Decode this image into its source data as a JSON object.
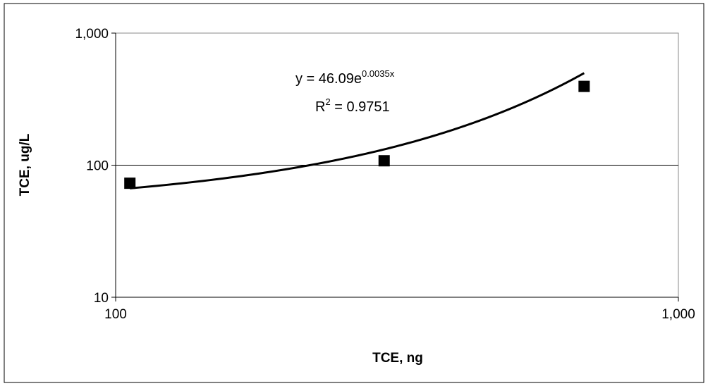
{
  "chart_data": {
    "type": "scatter",
    "xlabel": "TCE, ng",
    "ylabel": "TCE, ug/L",
    "x_scale": "log",
    "y_scale": "log",
    "xlim": [
      100,
      1000
    ],
    "ylim": [
      10,
      1000
    ],
    "x_ticks": [
      {
        "value": 100,
        "label": "100"
      },
      {
        "value": 1000,
        "label": "1,000"
      }
    ],
    "y_ticks": [
      {
        "value": 10,
        "label": "10"
      },
      {
        "value": 100,
        "label": "100"
      },
      {
        "value": 1000,
        "label": "1,000"
      }
    ],
    "grid": {
      "y_major": true,
      "x_major": false
    },
    "legend": "none",
    "series": [
      {
        "points": [
          {
            "x": 106,
            "y": 73
          },
          {
            "x": 300,
            "y": 108
          },
          {
            "x": 680,
            "y": 395
          }
        ],
        "marker": "square",
        "color": "#000000"
      }
    ],
    "trendline": {
      "kind": "exponential",
      "a": 46.09,
      "b": 0.0035,
      "x_range": [
        106,
        680
      ],
      "color": "#000000"
    },
    "annotations": {
      "equation_prefix": "y = 46.09e",
      "equation_exponent": "0.0035x",
      "r2_prefix": "R",
      "r2_sup": "2",
      "r2_value": " = 0.9751"
    }
  }
}
